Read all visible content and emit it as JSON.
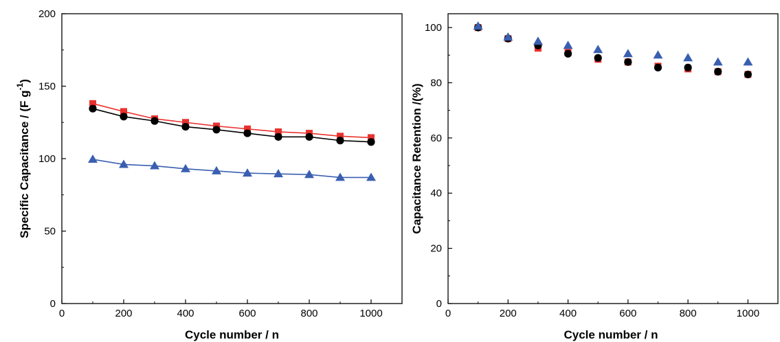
{
  "chart_data": [
    {
      "type": "line",
      "title": "",
      "xlabel": "Cycle number / n",
      "ylabel": "Specific Capacitance / (F g",
      "ylabel_sup": "-1",
      "ylabel_close": ")",
      "xlim": [
        0,
        1100
      ],
      "ylim": [
        0,
        200
      ],
      "xticks": [
        0,
        200,
        400,
        600,
        800,
        1000
      ],
      "yticks": [
        0,
        50,
        100,
        150,
        200
      ],
      "grid": false,
      "legend": "none",
      "x": [
        100,
        200,
        300,
        400,
        500,
        600,
        700,
        800,
        900,
        1000
      ],
      "series": [
        {
          "marker": "square",
          "color": "#e8322f",
          "line": true,
          "values": [
            138,
            132.5,
            127.5,
            125,
            122.5,
            120.5,
            118.5,
            117.5,
            115.5,
            114.5
          ]
        },
        {
          "marker": "circle",
          "color": "#000000",
          "line": true,
          "values": [
            134.5,
            129,
            126,
            122,
            120,
            117.5,
            115,
            115,
            112.5,
            111.5
          ]
        },
        {
          "marker": "triangle",
          "color": "#3a5fb0",
          "line": true,
          "values": [
            99.5,
            96,
            95,
            93,
            91.5,
            90,
            89.5,
            89,
            87,
            87
          ]
        }
      ]
    },
    {
      "type": "scatter",
      "title": "",
      "xlabel": "Cycle number / n",
      "ylabel": "Capacitance Retention /(%)",
      "xlim": [
        0,
        1100
      ],
      "ylim": [
        0,
        105
      ],
      "xticks": [
        0,
        200,
        400,
        600,
        800,
        1000
      ],
      "yticks": [
        0,
        20,
        40,
        60,
        80,
        100
      ],
      "grid": false,
      "legend": "none",
      "x": [
        100,
        200,
        300,
        400,
        500,
        600,
        700,
        800,
        900,
        1000
      ],
      "series": [
        {
          "marker": "square",
          "color": "#e8322f",
          "line": false,
          "values": [
            100,
            96,
            92.5,
            91,
            88.5,
            87.5,
            86,
            85,
            84,
            83
          ]
        },
        {
          "marker": "circle",
          "color": "#000000",
          "line": false,
          "values": [
            100,
            96,
            93.5,
            90.5,
            89,
            87.5,
            85.5,
            85.5,
            84,
            83
          ]
        },
        {
          "marker": "triangle",
          "color": "#3a5fb0",
          "line": false,
          "values": [
            100.5,
            96.5,
            95,
            93.5,
            92,
            90.5,
            90,
            89,
            87.5,
            87.5
          ]
        }
      ]
    }
  ]
}
